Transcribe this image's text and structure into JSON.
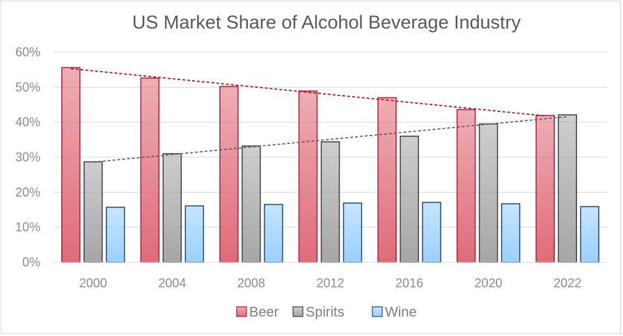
{
  "chart_data": {
    "type": "bar",
    "title": "US Market Share of Alcohol Beverage Industry",
    "xlabel": "",
    "ylabel": "",
    "categories": [
      "2000",
      "2004",
      "2008",
      "2012",
      "2016",
      "2020",
      "2022"
    ],
    "series": [
      {
        "name": "Beer",
        "values": [
          55.6,
          52.6,
          50.2,
          48.9,
          47.0,
          43.6,
          41.9
        ],
        "color": "#e06b78",
        "stroke": "#b01f3a"
      },
      {
        "name": "Spirits",
        "values": [
          28.7,
          31.0,
          33.2,
          34.4,
          36.0,
          39.5,
          42.1
        ],
        "color": "#a6a6a6",
        "stroke": "#404040"
      },
      {
        "name": "Wine",
        "values": [
          15.7,
          16.1,
          16.5,
          16.9,
          17.1,
          16.7,
          15.9
        ],
        "color": "#99d0ff",
        "stroke": "#1f4e79"
      }
    ],
    "trendlines": [
      {
        "series": "Beer",
        "from": 55.3,
        "to": 41.8,
        "color": "#c00000"
      },
      {
        "series": "Spirits",
        "from": 28.6,
        "to": 41.6,
        "color": "#595959"
      }
    ],
    "ylim": [
      0,
      60
    ],
    "yticks": [
      0,
      10,
      20,
      30,
      40,
      50,
      60
    ],
    "ytick_labels": [
      "0%",
      "10%",
      "20%",
      "30%",
      "40%",
      "50%",
      "60%"
    ],
    "grid": true,
    "legend_position": "bottom"
  }
}
